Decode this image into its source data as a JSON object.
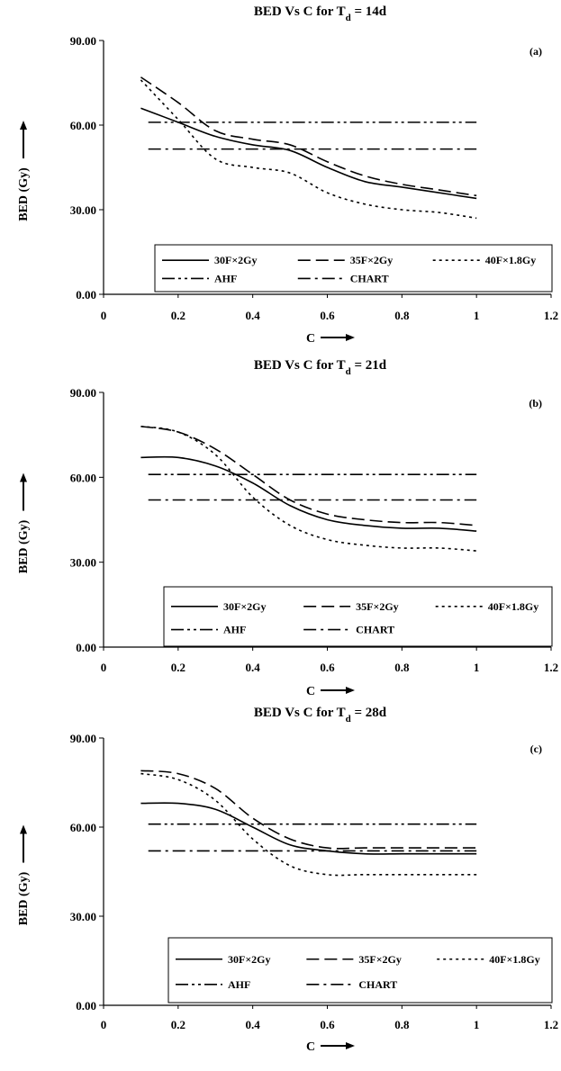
{
  "chart_data": [
    {
      "type": "line",
      "panel": "(a)",
      "title_main": "BED Vs C for T",
      "title_sub": "d",
      "title_tail": " = 14d",
      "xlabel": "C",
      "ylabel": "BED (Gy)",
      "xlim": [
        0,
        1.2
      ],
      "ylim": [
        0,
        90
      ],
      "x_ticks": [
        "0",
        "0.2",
        "0.4",
        "0.6",
        "0.8",
        "1",
        "1.2"
      ],
      "y_ticks": [
        "0.00",
        "30.00",
        "60.00",
        "90.00"
      ],
      "legend": [
        "30F×2Gy",
        "35F×2Gy",
        "40F×1.8Gy",
        "AHF",
        "CHART"
      ],
      "series": [
        {
          "name": "30F×2Gy",
          "dash": "solid",
          "x": [
            0.1,
            0.2,
            0.3,
            0.4,
            0.5,
            0.6,
            0.7,
            0.8,
            0.9,
            1.0
          ],
          "y": [
            66,
            61,
            56,
            53,
            51,
            45,
            40,
            38,
            36,
            34
          ]
        },
        {
          "name": "35F×2Gy",
          "dash": "longdash",
          "x": [
            0.1,
            0.2,
            0.3,
            0.4,
            0.5,
            0.6,
            0.7,
            0.8,
            0.9,
            1.0
          ],
          "y": [
            77,
            68,
            58,
            55,
            53,
            47,
            42,
            39,
            37,
            35
          ]
        },
        {
          "name": "40F×1.8Gy",
          "dash": "dot",
          "x": [
            0.1,
            0.2,
            0.3,
            0.4,
            0.5,
            0.6,
            0.7,
            0.8,
            0.9,
            1.0
          ],
          "y": [
            76,
            62,
            48,
            45,
            43,
            36,
            32,
            30,
            29,
            27
          ]
        },
        {
          "name": "AHF",
          "dash": "dashdotdot",
          "x": [
            0.12,
            1.0
          ],
          "y": [
            61,
            61
          ]
        },
        {
          "name": "CHART",
          "dash": "dashdot",
          "x": [
            0.12,
            1.0
          ],
          "y": [
            51.5,
            51.5
          ]
        }
      ]
    },
    {
      "type": "line",
      "panel": "(b)",
      "title_main": "BED Vs C for T",
      "title_sub": "d",
      "title_tail": " = 21d",
      "xlabel": "C",
      "ylabel": "BED (Gy)",
      "xlim": [
        0,
        1.2
      ],
      "ylim": [
        0,
        90
      ],
      "x_ticks": [
        "0",
        "0.2",
        "0.4",
        "0.6",
        "0.8",
        "1",
        "1.2"
      ],
      "y_ticks": [
        "0.00",
        "30.00",
        "60.00",
        "90.00"
      ],
      "legend": [
        "30F×2Gy",
        "35F×2Gy",
        "40F×1.8Gy",
        "AHF",
        "CHART"
      ],
      "series": [
        {
          "name": "30F×2Gy",
          "dash": "solid",
          "x": [
            0.1,
            0.2,
            0.3,
            0.4,
            0.5,
            0.6,
            0.7,
            0.8,
            0.9,
            1.0
          ],
          "y": [
            67,
            67,
            64,
            58,
            50,
            45,
            43,
            42,
            42,
            41
          ]
        },
        {
          "name": "35F×2Gy",
          "dash": "longdash",
          "x": [
            0.1,
            0.2,
            0.3,
            0.4,
            0.5,
            0.6,
            0.7,
            0.8,
            0.9,
            1.0
          ],
          "y": [
            78,
            76,
            70,
            61,
            52,
            47,
            45,
            44,
            44,
            43
          ]
        },
        {
          "name": "40F×1.8Gy",
          "dash": "dot",
          "x": [
            0.1,
            0.2,
            0.3,
            0.4,
            0.5,
            0.6,
            0.7,
            0.8,
            0.9,
            1.0
          ],
          "y": [
            78,
            76,
            68,
            53,
            43,
            38,
            36,
            35,
            35,
            34
          ]
        },
        {
          "name": "AHF",
          "dash": "dashdotdot",
          "x": [
            0.12,
            1.0
          ],
          "y": [
            61,
            61
          ]
        },
        {
          "name": "CHART",
          "dash": "dashdot",
          "x": [
            0.12,
            1.0
          ],
          "y": [
            52,
            52
          ]
        }
      ]
    },
    {
      "type": "line",
      "panel": "(c)",
      "title_main": "BED Vs C for T",
      "title_sub": "d",
      "title_tail": " = 28d",
      "xlabel": "C",
      "ylabel": "BED (Gy)",
      "xlim": [
        0,
        1.2
      ],
      "ylim": [
        0,
        90
      ],
      "x_ticks": [
        "0",
        "0.2",
        "0.4",
        "0.6",
        "0.8",
        "1",
        "1.2"
      ],
      "y_ticks": [
        "0.00",
        "30.00",
        "60.00",
        "90.00"
      ],
      "legend": [
        "30F×2Gy",
        "35F×2Gy",
        "40F×1.8Gy",
        "AHF",
        "CHART"
      ],
      "series": [
        {
          "name": "30F×2Gy",
          "dash": "solid",
          "x": [
            0.1,
            0.2,
            0.3,
            0.4,
            0.5,
            0.6,
            0.7,
            0.8,
            0.9,
            1.0
          ],
          "y": [
            68,
            68,
            66,
            60,
            54,
            52,
            51,
            51,
            51,
            51
          ]
        },
        {
          "name": "35F×2Gy",
          "dash": "longdash",
          "x": [
            0.1,
            0.2,
            0.3,
            0.4,
            0.5,
            0.6,
            0.7,
            0.8,
            0.9,
            1.0
          ],
          "y": [
            79,
            78,
            73,
            63,
            56,
            53,
            53,
            53,
            53,
            53
          ]
        },
        {
          "name": "40F×1.8Gy",
          "dash": "dot",
          "x": [
            0.1,
            0.2,
            0.3,
            0.4,
            0.5,
            0.6,
            0.7,
            0.8,
            0.9,
            1.0
          ],
          "y": [
            78,
            76,
            69,
            56,
            47,
            44,
            44,
            44,
            44,
            44
          ]
        },
        {
          "name": "AHF",
          "dash": "dashdotdot",
          "x": [
            0.12,
            1.0
          ],
          "y": [
            61,
            61
          ]
        },
        {
          "name": "CHART",
          "dash": "dashdot",
          "x": [
            0.12,
            1.0
          ],
          "y": [
            52,
            52
          ]
        }
      ]
    }
  ]
}
